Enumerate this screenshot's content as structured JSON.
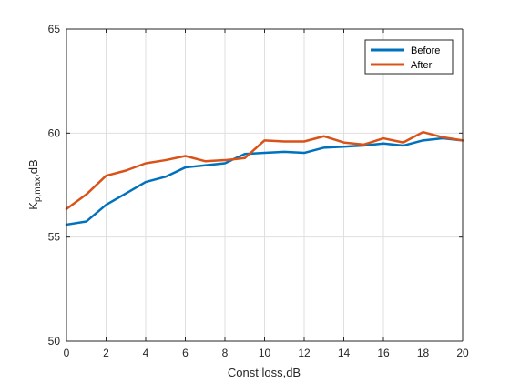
{
  "chart_data": {
    "type": "line",
    "xlabel": "Const loss,dB",
    "ylabel_main": "K",
    "ylabel_sub": "p,max",
    "ylabel_suffix": ",dB",
    "xlim": [
      0,
      20
    ],
    "ylim": [
      50,
      65
    ],
    "xticks": [
      "0",
      "2",
      "4",
      "6",
      "8",
      "10",
      "12",
      "14",
      "16",
      "18",
      "20"
    ],
    "yticks": [
      "50",
      "55",
      "60",
      "65"
    ],
    "grid": true,
    "legend_position": "top-right",
    "x": [
      0,
      1,
      2,
      3,
      4,
      5,
      6,
      7,
      8,
      9,
      10,
      11,
      12,
      13,
      14,
      15,
      16,
      17,
      18,
      19,
      20
    ],
    "series": [
      {
        "name": "Before",
        "color": "#0072BD",
        "values": [
          55.6,
          55.75,
          56.55,
          57.1,
          57.65,
          57.9,
          58.35,
          58.45,
          58.55,
          59.0,
          59.05,
          59.1,
          59.05,
          59.3,
          59.35,
          59.4,
          59.5,
          59.4,
          59.65,
          59.75,
          59.65
        ]
      },
      {
        "name": "After",
        "color": "#D95319",
        "values": [
          56.35,
          57.05,
          57.95,
          58.2,
          58.55,
          58.7,
          58.9,
          58.65,
          58.7,
          58.8,
          59.65,
          59.6,
          59.6,
          59.85,
          59.55,
          59.45,
          59.75,
          59.55,
          60.05,
          59.8,
          59.65
        ]
      }
    ]
  }
}
